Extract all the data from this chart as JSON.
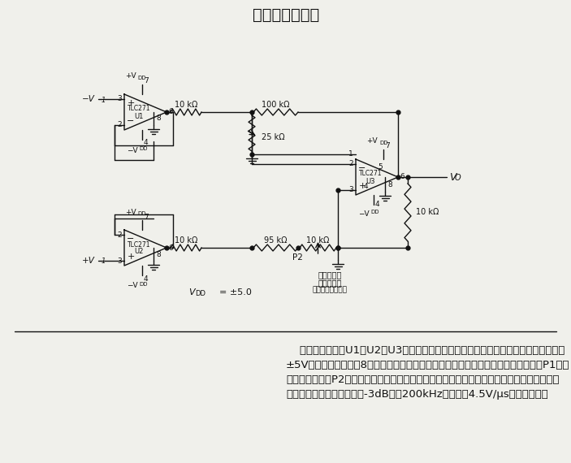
{
  "title": "仪器仪表驱动器",
  "title_fontsize": 14,
  "background_color": "#f0f0eb",
  "line_color": "#111111",
  "body_line1": "    三个运算放大器U1、U2和U3被连接成基本的仪器仪表放大器电路。每个运算放大器由",
  "body_line2": "±5V电源供电，其引脚8直接接地，并提供这一用途（高偏置方式）所需的交流性能。P1用来",
  "body_line3": "纠正失调误差，P2可调节输入共模抑制比。在没有加载的情况下，高输入阻抗可以为几兆欧。",
  "body_line4": "由此获得的电路频率响应（-3dB）为200kHz，并具有4.5V/μs的转换速率。",
  "body_fontsize": 9.5,
  "lw": 1.0
}
